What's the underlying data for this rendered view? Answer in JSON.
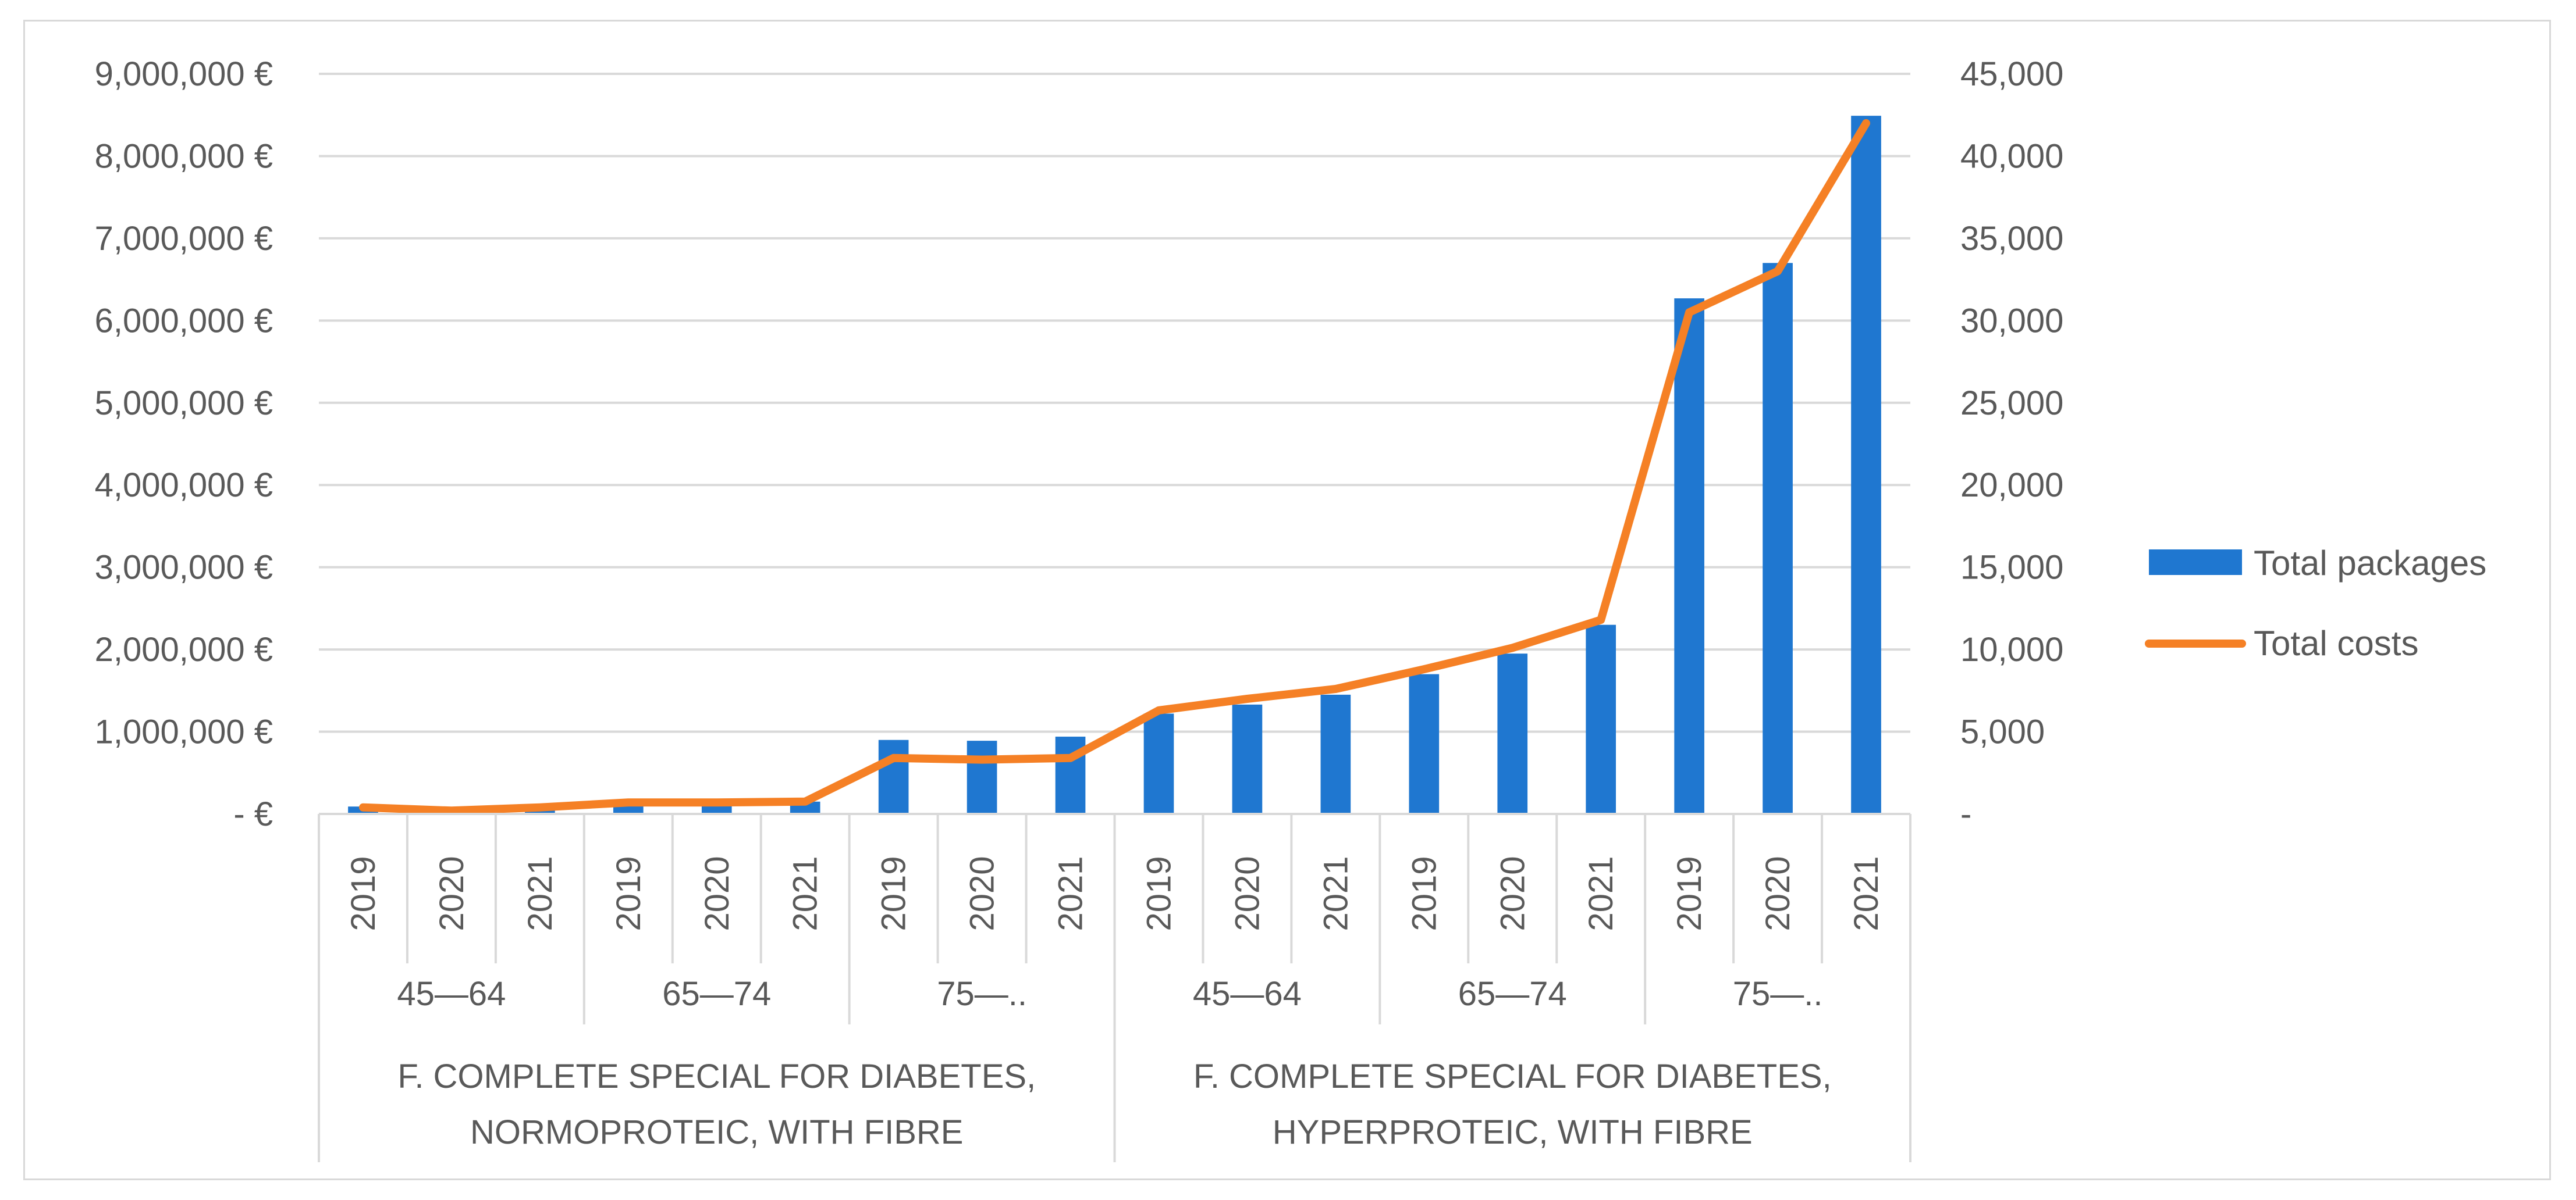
{
  "chart_data": {
    "type": "bar+line",
    "title": "",
    "x_levels": {
      "years": [
        "2019",
        "2020",
        "2021",
        "2019",
        "2020",
        "2021",
        "2019",
        "2020",
        "2021",
        "2019",
        "2020",
        "2021",
        "2019",
        "2020",
        "2021",
        "2019",
        "2020",
        "2021"
      ],
      "age_groups": [
        "45—64",
        "65—74",
        "75—..",
        "45—64",
        "65—74",
        "75—.."
      ],
      "formulas": [
        [
          "F. COMPLETE SPECIAL FOR DIABETES,",
          "NORMOPROTEIC, WITH FIBRE"
        ],
        [
          "F. COMPLETE SPECIAL FOR DIABETES,",
          "HYPERPROTEIC, WITH FIBRE"
        ]
      ]
    },
    "left_axis": {
      "min": 0,
      "max": 9000000,
      "step": 1000000,
      "tick_labels": [
        "-  €",
        "1,000,000 €",
        "2,000,000 €",
        "3,000,000 €",
        "4,000,000 €",
        "5,000,000 €",
        "6,000,000 €",
        "7,000,000 €",
        "8,000,000 €",
        "9,000,000 €"
      ]
    },
    "right_axis": {
      "min": 0,
      "max": 45000,
      "step": 5000,
      "tick_labels": [
        "-",
        "5,000",
        "10,000",
        "15,000",
        "20,000",
        "25,000",
        "30,000",
        "35,000",
        "40,000",
        "45,000"
      ]
    },
    "series": [
      {
        "name": "Total packages",
        "type": "bar",
        "axis": "left",
        "color": "#1f77d0",
        "values": [
          90000,
          40000,
          60000,
          140000,
          140000,
          150000,
          900000,
          890000,
          940000,
          1220000,
          1330000,
          1450000,
          1700000,
          1950000,
          2300000,
          6270000,
          6700000,
          8490000
        ]
      },
      {
        "name": "Total costs",
        "type": "line",
        "axis": "right",
        "color": "#f58025",
        "values": [
          400,
          200,
          400,
          700,
          700,
          750,
          3400,
          3300,
          3400,
          6300,
          7000,
          7600,
          8800,
          10100,
          11800,
          30500,
          33000,
          42000
        ]
      }
    ],
    "legend": {
      "position": "right"
    },
    "grid": true
  }
}
